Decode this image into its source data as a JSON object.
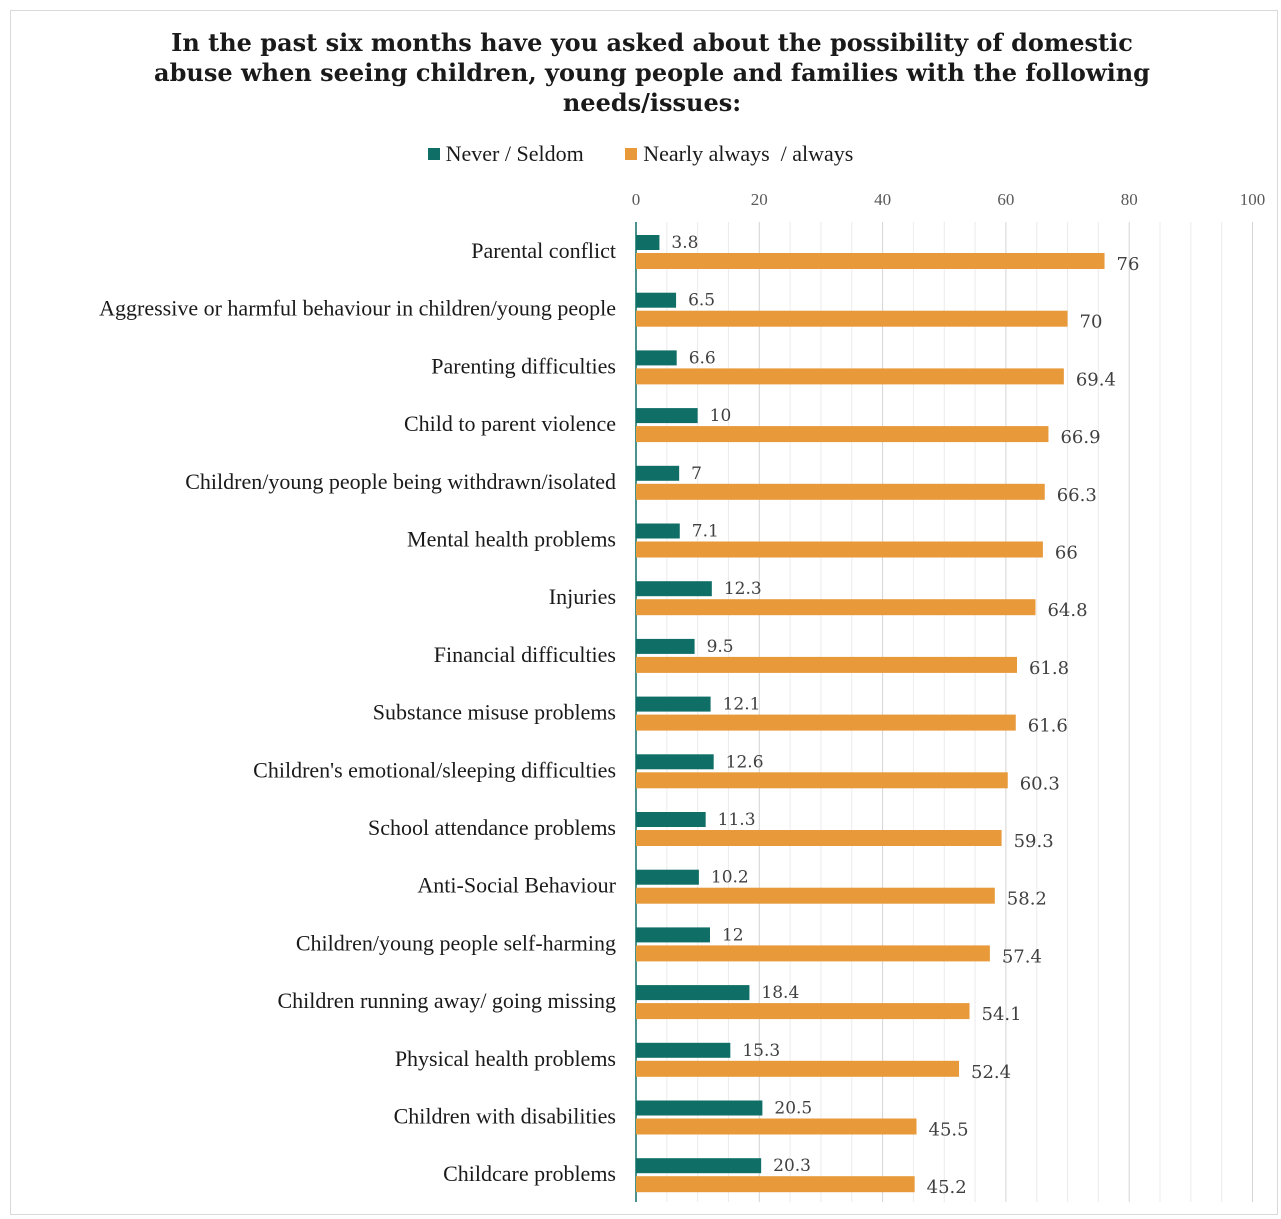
{
  "chart_data": {
    "type": "bar",
    "orientation": "horizontal",
    "title": "In the past six months have you asked about the possibility of domestic abuse when seeing children, young people and families with the following needs/issues:",
    "categories": [
      "Parental conflict",
      "Aggressive or harmful behaviour in children/young people",
      "Parenting difficulties",
      "Child to parent violence",
      "Children/young people being withdrawn/isolated",
      "Mental health problems",
      "Injuries",
      "Financial difficulties",
      "Substance misuse problems",
      "Children's emotional/sleeping difficulties",
      "School attendance problems",
      "Anti-Social Behaviour",
      "Children/young people self-harming",
      "Children running away/ going missing",
      "Physical health problems",
      "Children with disabilities",
      "Childcare problems"
    ],
    "series": [
      {
        "name": "Never / Seldom",
        "color": "#0f6e66",
        "values": [
          3.8,
          6.5,
          6.6,
          10,
          7,
          7.1,
          12.3,
          9.5,
          12.1,
          12.6,
          11.3,
          10.2,
          12,
          18.4,
          15.3,
          20.5,
          20.3
        ]
      },
      {
        "name": "Nearly always  / always",
        "color": "#e8993a",
        "values": [
          76,
          70,
          69.4,
          66.9,
          66.3,
          66,
          64.8,
          61.8,
          61.6,
          60.3,
          59.3,
          58.2,
          57.4,
          54.1,
          52.4,
          45.5,
          45.2
        ]
      }
    ],
    "xlim": [
      0,
      100
    ],
    "xticks": [
      "0",
      "20",
      "40",
      "60",
      "80",
      "100"
    ],
    "xaxis_position": "top",
    "grid": true,
    "legend_position": "top"
  }
}
